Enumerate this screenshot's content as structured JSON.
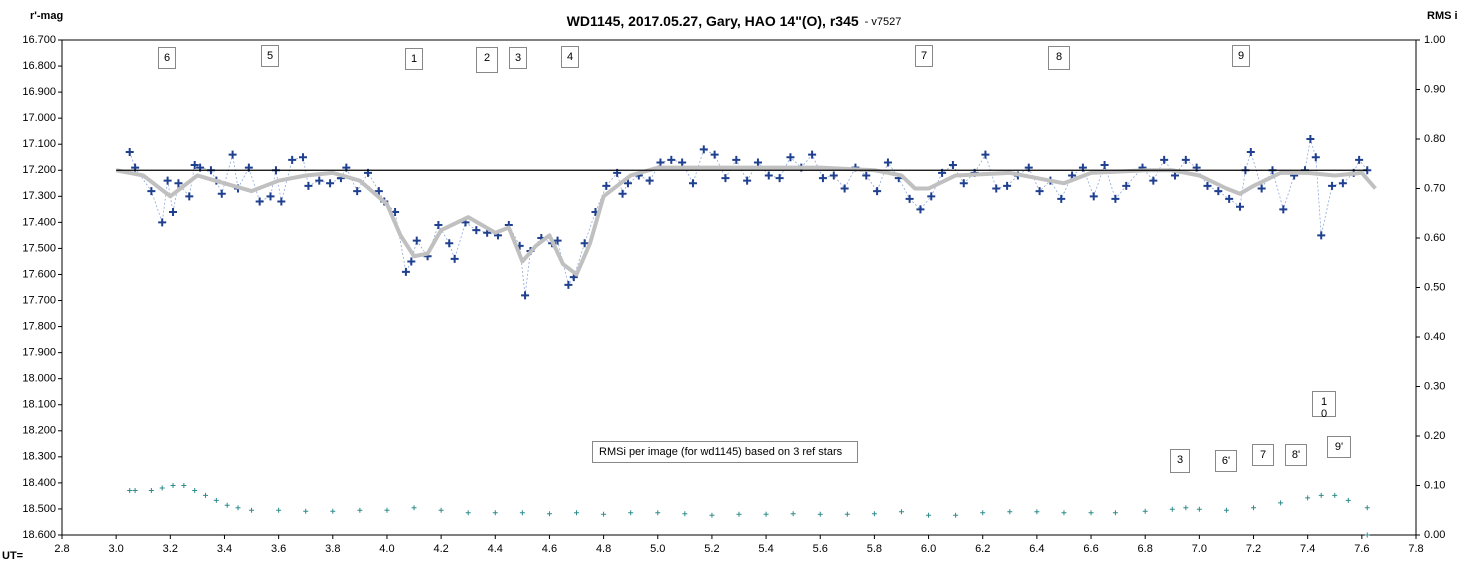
{
  "chart_data": {
    "type": "scatter",
    "title": "WD1145, 2017.05.27,  Gary, HAO 14\"(O), r345",
    "subtitle": "- v7527",
    "y_label": "r'-mag",
    "y2_label": "RMS i",
    "x_label": "UT=",
    "xlim": [
      2.8,
      7.8
    ],
    "xticks": [
      2.8,
      {
        "value": 3,
        "label": "3.0"
      },
      3.2,
      3.4,
      3.6,
      3.8,
      {
        "value": 4,
        "label": "4.0"
      },
      4.2,
      4.4,
      4.6,
      4.8,
      {
        "value": 5,
        "label": "5.0"
      },
      5.2,
      5.4,
      5.6,
      5.8,
      {
        "value": 6,
        "label": "6.0"
      },
      6.2,
      6.4,
      6.6,
      6.8,
      {
        "value": 7,
        "label": "7.0"
      },
      7.2,
      7.4,
      7.6,
      7.8
    ],
    "ylim": [
      18.6,
      16.7
    ],
    "yticks": [
      {
        "value": 16.7,
        "label": "16.700"
      },
      {
        "value": 16.8,
        "label": "16.800"
      },
      {
        "value": 16.9,
        "label": "16.900"
      },
      {
        "value": 17.0,
        "label": "17.000"
      },
      {
        "value": 17.1,
        "label": "17.100"
      },
      {
        "value": 17.2,
        "label": "17.200"
      },
      {
        "value": 17.3,
        "label": "17.300"
      },
      {
        "value": 17.4,
        "label": "17.400"
      },
      {
        "value": 17.5,
        "label": "17.500"
      },
      {
        "value": 17.6,
        "label": "17.600"
      },
      {
        "value": 17.7,
        "label": "17.700"
      },
      {
        "value": 17.8,
        "label": "17.800"
      },
      {
        "value": 17.9,
        "label": "17.900"
      },
      {
        "value": 18.0,
        "label": "18.000"
      },
      {
        "value": 18.1,
        "label": "18.100"
      },
      {
        "value": 18.2,
        "label": "18.200"
      },
      {
        "value": 18.3,
        "label": "18.300"
      },
      {
        "value": 18.4,
        "label": "18.400"
      },
      {
        "value": 18.5,
        "label": "18.500"
      },
      {
        "value": 18.6,
        "label": "18.600"
      }
    ],
    "y2lim": [
      0,
      1
    ],
    "y2ticks": [
      {
        "value": 0,
        "label": "0.00"
      },
      {
        "value": 0.1,
        "label": "0.10"
      },
      {
        "value": 0.2,
        "label": "0.20"
      },
      {
        "value": 0.3,
        "label": "0.30"
      },
      {
        "value": 0.4,
        "label": "0.40"
      },
      {
        "value": 0.5,
        "label": "0.50"
      },
      {
        "value": 0.6,
        "label": "0.60"
      },
      {
        "value": 0.7,
        "label": "0.70"
      },
      {
        "value": 0.8,
        "label": "0.80"
      },
      {
        "value": 0.9,
        "label": "0.90"
      },
      {
        "value": 1,
        "label": "1.00"
      }
    ],
    "series": [
      {
        "style": "markers",
        "color": "#1f3f8f",
        "x": [
          3.05,
          3.07,
          3.13,
          3.17,
          3.19,
          3.21,
          3.23,
          3.27,
          3.29,
          3.31,
          3.35,
          3.37,
          3.39,
          3.43,
          3.45,
          3.49,
          3.53,
          3.57,
          3.59,
          3.61,
          3.65,
          3.69,
          3.71,
          3.75,
          3.79,
          3.83,
          3.85,
          3.89,
          3.93,
          3.97,
          3.99,
          4.03,
          4.07,
          4.09,
          4.11,
          4.15,
          4.19,
          4.23,
          4.25,
          4.29,
          4.33,
          4.37,
          4.41,
          4.45,
          4.49,
          4.51,
          4.53,
          4.57,
          4.61,
          4.63,
          4.67,
          4.69,
          4.73,
          4.77,
          4.81,
          4.85,
          4.87,
          4.89,
          4.93,
          4.97,
          5.01,
          5.05,
          5.09,
          5.13,
          5.17,
          5.21,
          5.25,
          5.29,
          5.33,
          5.37,
          5.41,
          5.45,
          5.49,
          5.53,
          5.57,
          5.61,
          5.65,
          5.69,
          5.73,
          5.77,
          5.81,
          5.85,
          5.89,
          5.93,
          5.97,
          6.01,
          6.05,
          6.09,
          6.13,
          6.17,
          6.21,
          6.25,
          6.29,
          6.33,
          6.37,
          6.41,
          6.45,
          6.49,
          6.53,
          6.57,
          6.61,
          6.65,
          6.69,
          6.73,
          6.79,
          6.83,
          6.87,
          6.91,
          6.95,
          6.99,
          7.03,
          7.07,
          7.11,
          7.15,
          7.17,
          7.19,
          7.23,
          7.27,
          7.31,
          7.35,
          7.39,
          7.41,
          7.43,
          7.45,
          7.49,
          7.53,
          7.57,
          7.59,
          7.62
        ],
        "values": [
          17.13,
          17.19,
          17.28,
          17.4,
          17.24,
          17.36,
          17.25,
          17.3,
          17.18,
          17.19,
          17.2,
          17.24,
          17.29,
          17.14,
          17.27,
          17.19,
          17.32,
          17.3,
          17.2,
          17.32,
          17.16,
          17.15,
          17.26,
          17.24,
          17.25,
          17.23,
          17.19,
          17.28,
          17.21,
          17.28,
          17.32,
          17.36,
          17.59,
          17.55,
          17.47,
          17.53,
          17.41,
          17.48,
          17.54,
          17.4,
          17.43,
          17.44,
          17.45,
          17.41,
          17.49,
          17.68,
          17.51,
          17.46,
          17.48,
          17.47,
          17.64,
          17.61,
          17.48,
          17.36,
          17.26,
          17.21,
          17.29,
          17.25,
          17.22,
          17.24,
          17.17,
          17.16,
          17.17,
          17.25,
          17.12,
          17.14,
          17.23,
          17.16,
          17.24,
          17.17,
          17.22,
          17.23,
          17.15,
          17.19,
          17.14,
          17.23,
          17.22,
          17.27,
          17.19,
          17.22,
          17.28,
          17.17,
          17.23,
          17.31,
          17.35,
          17.3,
          17.21,
          17.18,
          17.25,
          17.21,
          17.14,
          17.27,
          17.26,
          17.22,
          17.19,
          17.28,
          17.24,
          17.31,
          17.22,
          17.19,
          17.3,
          17.18,
          17.31,
          17.26,
          17.19,
          17.24,
          17.16,
          17.22,
          17.16,
          17.19,
          17.26,
          17.28,
          17.31,
          17.34,
          17.2,
          17.13,
          17.27,
          17.2,
          17.35,
          17.22,
          17.2,
          17.08,
          17.15,
          17.45,
          17.26,
          17.25,
          17.21,
          17.16,
          17.2
        ]
      },
      {
        "style": "smooth",
        "color": "#c0c0c0",
        "x": [
          3.0,
          3.1,
          3.2,
          3.3,
          3.4,
          3.5,
          3.6,
          3.7,
          3.8,
          3.9,
          4.0,
          4.05,
          4.1,
          4.15,
          4.2,
          4.3,
          4.4,
          4.45,
          4.5,
          4.55,
          4.6,
          4.65,
          4.7,
          4.75,
          4.8,
          4.9,
          5.0,
          5.2,
          5.4,
          5.6,
          5.8,
          5.9,
          5.95,
          6.0,
          6.1,
          6.3,
          6.4,
          6.5,
          6.6,
          6.8,
          6.9,
          7.0,
          7.1,
          7.15,
          7.2,
          7.3,
          7.4,
          7.5,
          7.6,
          7.65
        ],
        "values": [
          17.2,
          17.22,
          17.3,
          17.22,
          17.25,
          17.28,
          17.24,
          17.22,
          17.21,
          17.24,
          17.33,
          17.45,
          17.53,
          17.52,
          17.43,
          17.38,
          17.44,
          17.42,
          17.55,
          17.49,
          17.45,
          17.56,
          17.6,
          17.48,
          17.3,
          17.22,
          17.19,
          17.19,
          17.19,
          17.19,
          17.2,
          17.22,
          17.27,
          17.27,
          17.22,
          17.21,
          17.23,
          17.25,
          17.21,
          17.2,
          17.2,
          17.22,
          17.27,
          17.29,
          17.26,
          17.21,
          17.21,
          17.22,
          17.21,
          17.27
        ]
      },
      {
        "style": "line",
        "color": "#000000",
        "x": [
          3.0,
          7.62
        ],
        "values": [
          17.2,
          17.2
        ]
      },
      {
        "style": "small-markers",
        "axis": "y2",
        "color": "#2e8b8b",
        "x": [
          3.05,
          3.07,
          3.13,
          3.17,
          3.21,
          3.25,
          3.29,
          3.33,
          3.37,
          3.41,
          3.45,
          3.5,
          3.6,
          3.7,
          3.8,
          3.9,
          4.0,
          4.1,
          4.2,
          4.3,
          4.4,
          4.5,
          4.6,
          4.7,
          4.8,
          4.9,
          5.0,
          5.1,
          5.2,
          5.3,
          5.4,
          5.5,
          5.6,
          5.7,
          5.8,
          5.9,
          6.0,
          6.1,
          6.2,
          6.3,
          6.4,
          6.5,
          6.6,
          6.69,
          6.8,
          6.9,
          6.95,
          7.0,
          7.1,
          7.2,
          7.3,
          7.4,
          7.45,
          7.5,
          7.55,
          7.62,
          7.62
        ],
        "values": [
          0.09,
          0.09,
          0.09,
          0.095,
          0.1,
          0.1,
          0.09,
          0.08,
          0.07,
          0.06,
          0.055,
          0.05,
          0.05,
          0.048,
          0.048,
          0.05,
          0.05,
          0.055,
          0.05,
          0.045,
          0.045,
          0.045,
          0.043,
          0.045,
          0.042,
          0.045,
          0.045,
          0.043,
          0.04,
          0.042,
          0.042,
          0.043,
          0.042,
          0.042,
          0.043,
          0.047,
          0.04,
          0.04,
          0.045,
          0.047,
          0.047,
          0.045,
          0.045,
          0.045,
          0.048,
          0.052,
          0.055,
          0.052,
          0.05,
          0.055,
          0.065,
          0.075,
          0.08,
          0.08,
          0.07,
          0.055,
          0
        ]
      }
    ],
    "annotations": [
      "6",
      "5",
      "1",
      "2",
      "3",
      "4",
      "7",
      "8",
      "9",
      "1\n0",
      "3",
      "6'",
      "7",
      "8'",
      "9'",
      "RMSi per image (for wd1145) based on 3 ref stars"
    ]
  }
}
